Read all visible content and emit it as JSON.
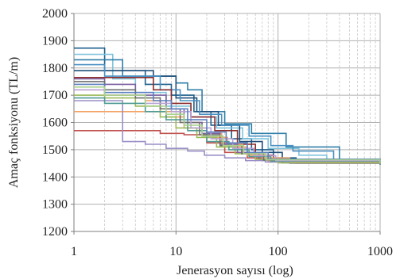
{
  "chart_data": {
    "type": "line",
    "xscale": "log",
    "xlabel": "Jenerasyon sayısı (log)",
    "ylabel": "Amaç fonksiyonu  (TL/m)",
    "xlim": [
      1,
      1000
    ],
    "ylim": [
      1200,
      2000
    ],
    "xticks": [
      1,
      10,
      100,
      1000
    ],
    "xtick_labels": [
      "1",
      "10",
      "100",
      "1000"
    ],
    "yticks": [
      1200,
      1300,
      1400,
      1500,
      1600,
      1700,
      1800,
      1900,
      2000
    ],
    "ytick_labels": [
      "1200",
      "1300",
      "1400",
      "1500",
      "1600",
      "1700",
      "1800",
      "1900",
      "2000"
    ],
    "grid": {
      "major": true,
      "minor_x": true
    },
    "legend": "none",
    "series": [
      {
        "color": "#1f5f8b",
        "x": [
          1,
          2,
          5,
          9,
          15,
          22,
          35,
          55,
          90,
          150,
          1000
        ],
        "y": [
          1873,
          1790,
          1740,
          1700,
          1640,
          1590,
          1540,
          1500,
          1470,
          1452,
          1445
        ]
      },
      {
        "color": "#7fc4dc",
        "x": [
          1,
          2.4,
          4,
          8,
          14,
          25,
          45,
          80,
          160,
          300,
          1000
        ],
        "y": [
          1850,
          1760,
          1710,
          1660,
          1620,
          1580,
          1540,
          1505,
          1480,
          1460,
          1448
        ]
      },
      {
        "color": "#2f7fa8",
        "x": [
          1,
          3,
          10,
          13,
          18,
          30,
          55,
          120,
          400,
          1000
        ],
        "y": [
          1830,
          1770,
          1745,
          1720,
          1640,
          1595,
          1560,
          1510,
          1465,
          1448
        ]
      },
      {
        "color": "#1f4e79",
        "x": [
          1,
          2,
          6,
          10,
          16,
          26,
          42,
          70,
          110,
          1000
        ],
        "y": [
          1790,
          1790,
          1770,
          1690,
          1640,
          1590,
          1530,
          1490,
          1465,
          1450
        ]
      },
      {
        "color": "#4a90c2",
        "x": [
          1,
          2,
          7,
          11,
          17,
          28,
          52,
          85,
          140,
          350,
          1000
        ],
        "y": [
          1812,
          1770,
          1720,
          1680,
          1630,
          1590,
          1550,
          1515,
          1495,
          1465,
          1448
        ]
      },
      {
        "color": "#8b2c2c",
        "x": [
          1,
          2,
          6,
          9,
          14,
          24,
          40,
          60,
          90,
          1000
        ],
        "y": [
          1765,
          1765,
          1720,
          1670,
          1620,
          1570,
          1520,
          1480,
          1460,
          1448
        ]
      },
      {
        "color": "#c0504d",
        "x": [
          1,
          3,
          7,
          12,
          20,
          30,
          50,
          80,
          1000
        ],
        "y": [
          1570,
          1570,
          1560,
          1555,
          1525,
          1490,
          1470,
          1455,
          1448
        ]
      },
      {
        "color": "#f4a261",
        "x": [
          1,
          2,
          5,
          8,
          12,
          20,
          32,
          50,
          80,
          150,
          1000
        ],
        "y": [
          1640,
          1640,
          1640,
          1620,
          1580,
          1545,
          1510,
          1480,
          1460,
          1450,
          1448
        ]
      },
      {
        "color": "#e8a06a",
        "x": [
          1,
          2,
          5,
          7,
          11,
          18,
          28,
          45,
          70,
          130,
          1000
        ],
        "y": [
          1720,
          1700,
          1680,
          1640,
          1600,
          1560,
          1520,
          1490,
          1470,
          1455,
          1450
        ]
      },
      {
        "color": "#9b8fc7",
        "x": [
          1,
          3,
          5,
          8,
          13,
          19,
          30,
          48,
          75,
          130,
          1000
        ],
        "y": [
          1680,
          1530,
          1520,
          1505,
          1495,
          1480,
          1470,
          1460,
          1455,
          1450,
          1448
        ]
      },
      {
        "color": "#7a5fa0",
        "x": [
          1,
          2,
          4,
          8,
          12,
          18,
          27,
          40,
          65,
          110,
          1000
        ],
        "y": [
          1760,
          1740,
          1700,
          1650,
          1600,
          1560,
          1520,
          1490,
          1465,
          1452,
          1448
        ]
      },
      {
        "color": "#9bbb59",
        "x": [
          1,
          2,
          4,
          7,
          10,
          16,
          25,
          38,
          60,
          100,
          1000
        ],
        "y": [
          1700,
          1690,
          1660,
          1620,
          1580,
          1545,
          1510,
          1485,
          1465,
          1452,
          1448
        ]
      },
      {
        "color": "#4f9a94",
        "x": [
          1,
          2,
          5,
          8,
          13,
          20,
          33,
          52,
          85,
          1000
        ],
        "y": [
          1690,
          1670,
          1640,
          1610,
          1570,
          1530,
          1500,
          1475,
          1458,
          1448
        ]
      },
      {
        "color": "#6e6e6e",
        "x": [
          1,
          2,
          4,
          7,
          11,
          17,
          27,
          44,
          72,
          1000
        ],
        "y": [
          1750,
          1720,
          1690,
          1650,
          1600,
          1555,
          1515,
          1485,
          1462,
          1449
        ]
      },
      {
        "color": "#b8a3d6",
        "x": [
          1,
          2,
          5,
          9,
          14,
          22,
          36,
          58,
          95,
          1000
        ],
        "y": [
          1720,
          1700,
          1670,
          1640,
          1580,
          1540,
          1505,
          1478,
          1460,
          1449
        ]
      },
      {
        "color": "#5b7fbf",
        "x": [
          1,
          2,
          6,
          9,
          13,
          20,
          31,
          50,
          80,
          1000
        ],
        "y": [
          1740,
          1710,
          1680,
          1650,
          1610,
          1565,
          1525,
          1490,
          1465,
          1450
        ]
      },
      {
        "color": "#a9d18e",
        "x": [
          1,
          2,
          5,
          8,
          12,
          18,
          29,
          46,
          76,
          1000
        ],
        "y": [
          1730,
          1700,
          1660,
          1630,
          1590,
          1550,
          1515,
          1485,
          1463,
          1449
        ]
      }
    ]
  }
}
